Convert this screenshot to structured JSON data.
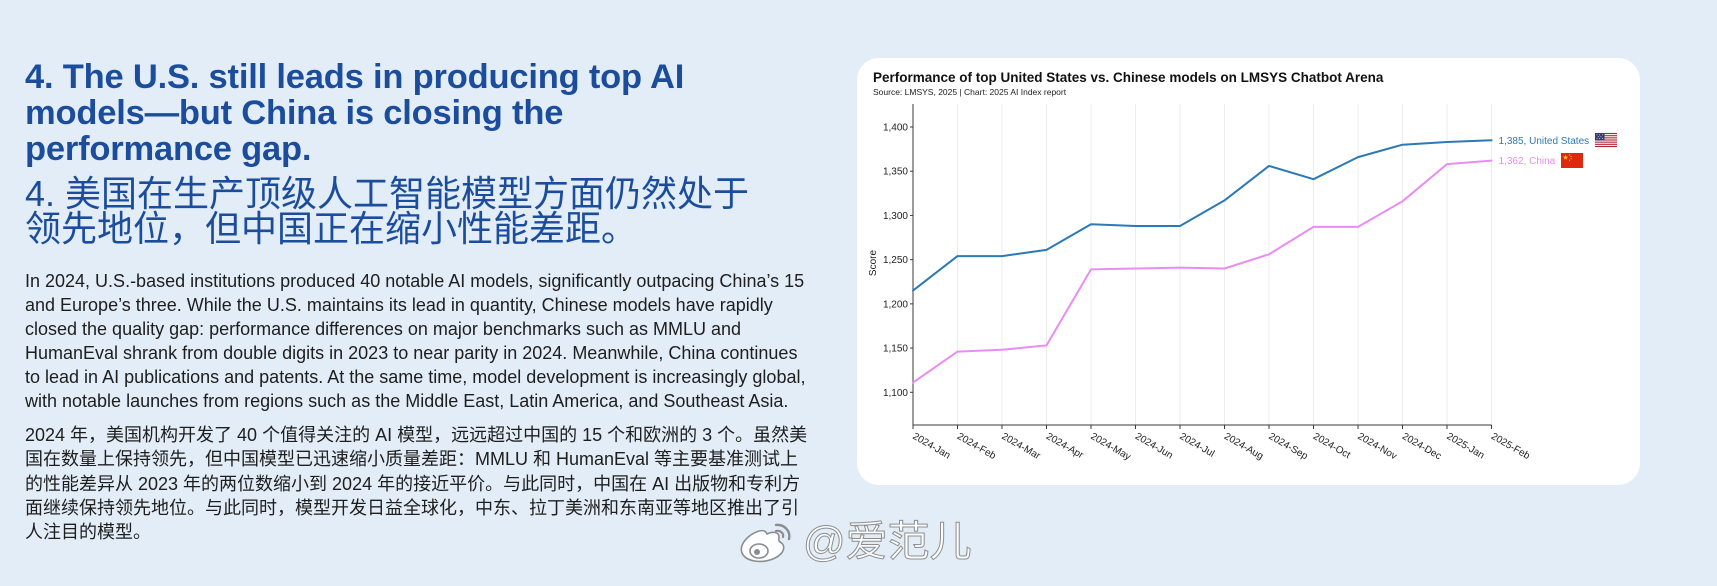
{
  "page": {
    "background": "#e2edf7",
    "card_background": "#ffffff"
  },
  "section": {
    "accent_color": "#1c4d9d",
    "heading_en": "4. The U.S. still leads in producing top AI models—but China is closing the performance gap.",
    "heading_zh": "4. 美国在生产顶级人工智能模型方面仍然处于领先地位，但中国正在缩小性能差距。",
    "body_en": "In 2024, U.S.-based institutions produced 40 notable AI models, significantly outpacing China’s 15 and Europe’s three. While the U.S. maintains its lead in quantity, Chinese models have rapidly closed the quality gap: performance differences on major benchmarks such as MMLU and HumanEval shrank from double digits in 2023 to near parity in 2024. Meanwhile, China continues to lead in AI publications and patents. At the same time, model development is increasingly global, with notable launches from regions such as the Middle East, Latin America, and Southeast Asia.",
    "body_zh": "2024 年，美国机构开发了 40 个值得关注的 AI 模型，远远超过中国的 15 个和欧洲的 3 个。虽然美国在数量上保持领先，但中国模型已迅速缩小质量差距：MMLU 和 HumanEval 等主要基准测试上的性能差异从 2023 年的两位数缩小到 2024 年的接近平价。与此同时，中国在 AI 出版物和专利方面继续保持领先地位。与此同时，模型开发日益全球化，中东、拉丁美洲和东南亚等地区推出了引人注目的模型。"
  },
  "watermark": {
    "icon": "weibo-logo-icon",
    "text": "@爱范儿"
  },
  "chart_data": {
    "type": "line",
    "title": "Performance of top United States vs. Chinese models on LMSYS Chatbot Arena",
    "subtitle": "Source: LMSYS, 2025 | Chart: 2025 AI Index report",
    "ylabel": "Score",
    "categories": [
      "2024-Jan",
      "2024-Feb",
      "2024-Mar",
      "2024-Apr",
      "2024-May",
      "2024-Jun",
      "2024-Jul",
      "2024-Aug",
      "2024-Sep",
      "2024-Oct",
      "2024-Nov",
      "2024-Dec",
      "2025-Jan",
      "2025-Feb"
    ],
    "yticks": [
      1100,
      1150,
      1200,
      1250,
      1300,
      1350,
      1400
    ],
    "ytick_labels": [
      "1,100",
      "1,150",
      "1,200",
      "1,250",
      "1,300",
      "1,350",
      "1,400"
    ],
    "ylim": [
      1063,
      1426
    ],
    "grid": "vertical",
    "series": [
      {
        "name": "United States",
        "color": "#2b79b7",
        "flag": "us-flag-icon",
        "end_value_label": "1,385",
        "values": [
          1215,
          1254,
          1254,
          1261,
          1290,
          1288,
          1288,
          1317,
          1356,
          1341,
          1366,
          1380,
          1383,
          1385
        ]
      },
      {
        "name": "China",
        "color": "#e98cf4",
        "flag": "china-flag-icon",
        "end_value_label": "1,362",
        "values": [
          1111,
          1146,
          1148,
          1153,
          1239,
          1240,
          1241,
          1240,
          1256,
          1287,
          1287,
          1316,
          1358,
          1362
        ]
      }
    ]
  }
}
